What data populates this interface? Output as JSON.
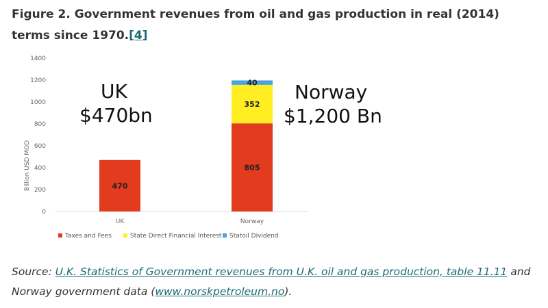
{
  "caption": {
    "text": "Figure 2. Government revenues from oil and gas production in real (2014) terms since 1970.",
    "ref_link": "[4]"
  },
  "annotations": {
    "uk_name": "UK",
    "uk_total": "$470bn",
    "norway_name": "Norway",
    "norway_total": "$1,200 Bn"
  },
  "source": {
    "prefix": "Source: ",
    "link1": "U.K. Statistics of Government revenues from U.K. oil and gas production, table 11.11",
    "middle": " and Norway government data (",
    "link2": "www.norskpetroleum.no",
    "suffix": ")."
  },
  "chart_data": {
    "type": "bar",
    "stacked": true,
    "categories": [
      "UK",
      "Norway"
    ],
    "series": [
      {
        "name": "Taxes and Fees",
        "color": "#e23b1e",
        "values": [
          470,
          805
        ],
        "labels": [
          "470",
          "805"
        ]
      },
      {
        "name": "State Direct Financial Interest",
        "color": "#ffee22",
        "values": [
          0,
          352
        ],
        "labels": [
          "",
          "352"
        ]
      },
      {
        "name": "Statoil Dividend",
        "color": "#4aa3df",
        "values": [
          0,
          40
        ],
        "labels": [
          "",
          "40"
        ]
      }
    ],
    "ylabel": "Billion USD MOD",
    "ylim": [
      0,
      1400
    ],
    "yticks": [
      0,
      200,
      400,
      600,
      800,
      1000,
      1200,
      1400
    ],
    "grid": false,
    "legend": "bottom"
  }
}
